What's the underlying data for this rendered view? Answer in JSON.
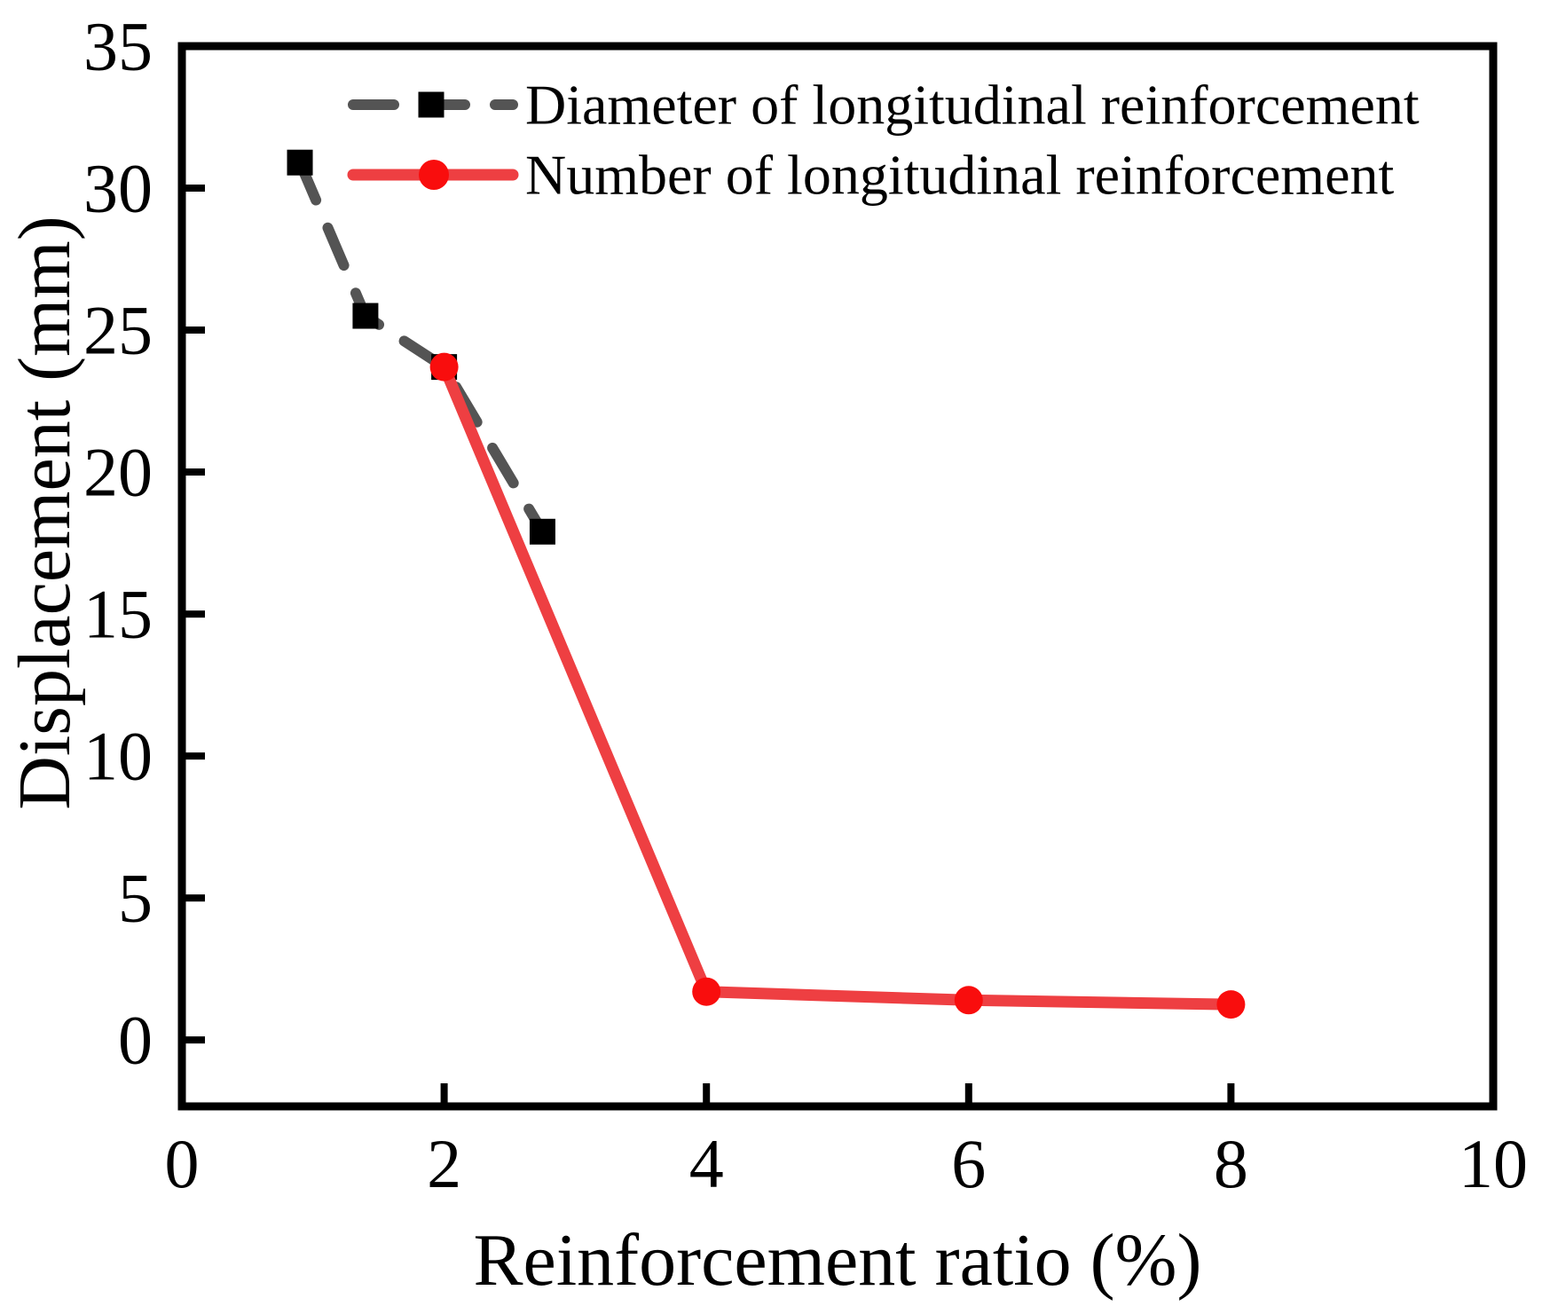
{
  "chart_data": {
    "type": "line",
    "title": "",
    "xlabel": "Reinforcement ratio (%)",
    "ylabel": "Displacement (mm)",
    "xlim": [
      0,
      10
    ],
    "ylim": [
      -2.34,
      35
    ],
    "xticks": [
      0,
      2,
      4,
      6,
      8,
      10
    ],
    "yticks": [
      0,
      5,
      10,
      15,
      20,
      25,
      30,
      35
    ],
    "grid": false,
    "legend_position": "top-left-inside",
    "series": [
      {
        "name": "Diameter of longitudinal reinforcement",
        "line_style": "dashed",
        "line_color": "#545454",
        "marker": "square",
        "marker_color": "#000000",
        "points": [
          [
            0.9,
            30.9
          ],
          [
            1.4,
            25.5
          ],
          [
            2.0,
            23.7
          ],
          [
            2.75,
            17.9
          ]
        ]
      },
      {
        "name": "Number of longitudinal reinforcement",
        "line_style": "solid",
        "line_color": "#ee3f42",
        "marker": "circle",
        "marker_color": "#f90d0d",
        "points": [
          [
            2.0,
            23.7
          ],
          [
            4.0,
            1.7
          ],
          [
            6.0,
            1.4
          ],
          [
            8.0,
            1.25
          ]
        ]
      }
    ],
    "colors": {
      "background": "#ffffff",
      "axis": "#000000",
      "tick_labels": "#000000"
    }
  }
}
